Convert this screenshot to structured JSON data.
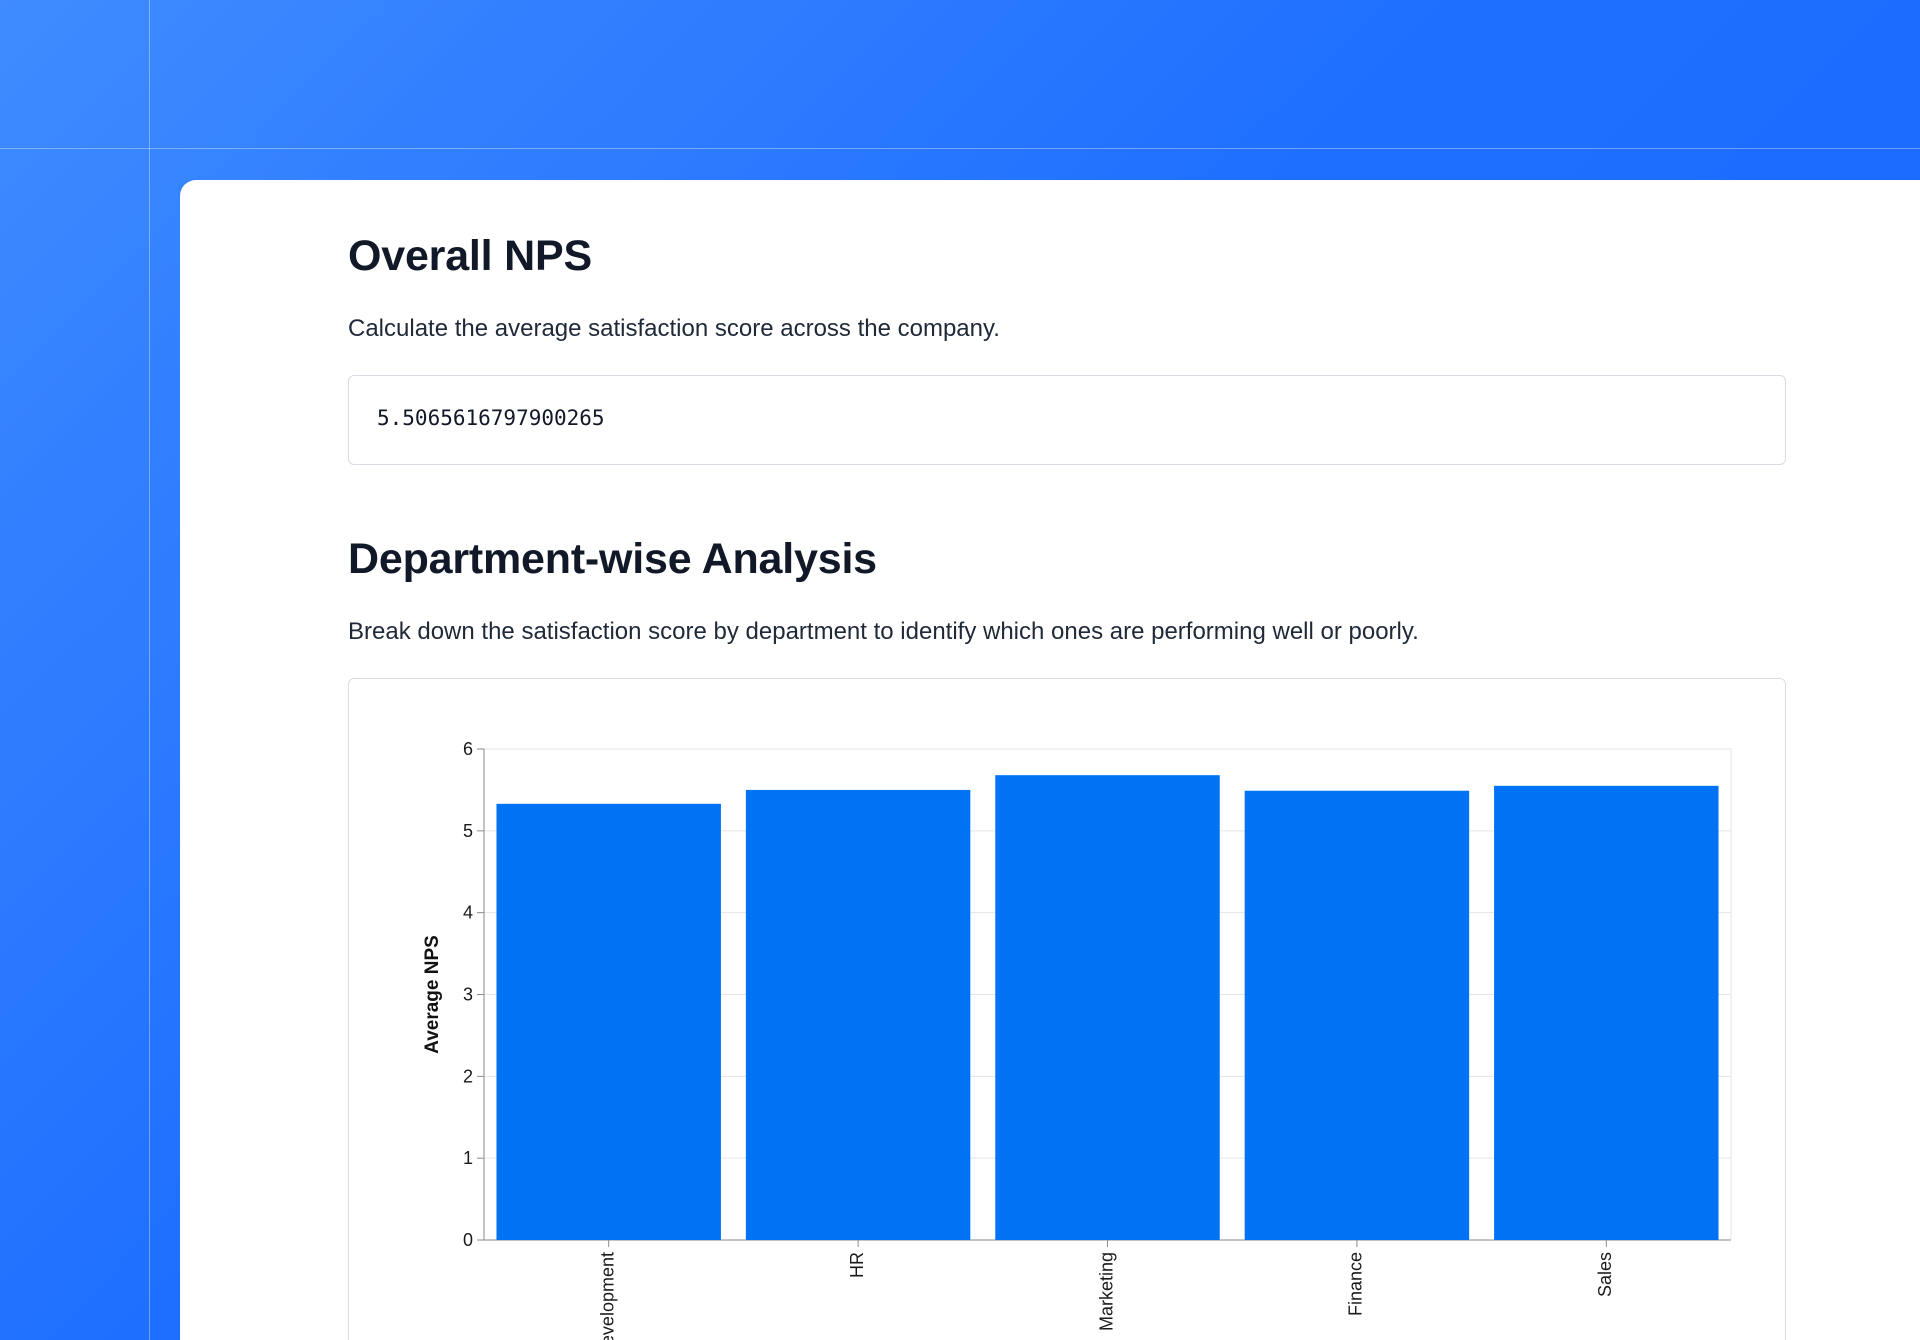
{
  "sections": {
    "overall": {
      "title": "Overall NPS",
      "description": "Calculate the average satisfaction score across the company.",
      "output": "5.5065616797900265"
    },
    "department": {
      "title": "Department-wise Analysis",
      "description": "Break down the satisfaction score by department to identify which ones are performing well or poorly."
    }
  },
  "colors": {
    "background": "#1f6fff",
    "bar": "#0073f5",
    "card": "#ffffff"
  },
  "chart_data": {
    "type": "bar",
    "categories": [
      "Development",
      "HR",
      "Marketing",
      "Finance",
      "Sales"
    ],
    "values": [
      5.33,
      5.5,
      5.68,
      5.49,
      5.55
    ],
    "ylabel": "Average NPS",
    "xlabel": "",
    "ylim": [
      0,
      6
    ],
    "yticks": [
      0,
      1,
      2,
      3,
      4,
      5,
      6
    ],
    "grid": true,
    "legend": "none"
  }
}
